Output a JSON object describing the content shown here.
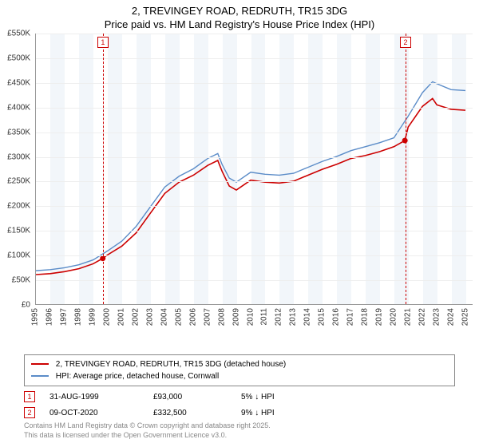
{
  "title_line1": "2, TREVINGEY ROAD, REDRUTH, TR15 3DG",
  "title_line2": "Price paid vs. HM Land Registry's House Price Index (HPI)",
  "chart": {
    "type": "line",
    "background_color": "#ffffff",
    "band_color": "#f2f6fa",
    "grid_color": "#eeeeee",
    "axis_color": "#999999",
    "x_years": [
      1995,
      1996,
      1997,
      1998,
      1999,
      2000,
      2001,
      2002,
      2003,
      2004,
      2005,
      2006,
      2007,
      2008,
      2009,
      2010,
      2011,
      2012,
      2013,
      2014,
      2015,
      2016,
      2017,
      2018,
      2019,
      2020,
      2021,
      2022,
      2023,
      2024,
      2025
    ],
    "y_ticks": [
      0,
      50,
      100,
      150,
      200,
      250,
      300,
      350,
      400,
      450,
      500,
      550
    ],
    "y_tick_labels": [
      "£0",
      "£50K",
      "£100K",
      "£150K",
      "£200K",
      "£250K",
      "£300K",
      "£350K",
      "£400K",
      "£450K",
      "£500K",
      "£550K"
    ],
    "ylim": [
      0,
      550
    ],
    "xlim": [
      1995,
      2025.5
    ],
    "series": [
      {
        "name": "price_paid",
        "label": "2, TREVINGEY ROAD, REDRUTH, TR15 3DG (detached house)",
        "color": "#cc0000",
        "width": 1.6,
        "points": [
          [
            1995,
            60
          ],
          [
            1996,
            62
          ],
          [
            1997,
            66
          ],
          [
            1998,
            72
          ],
          [
            1999,
            82
          ],
          [
            1999.67,
            93
          ],
          [
            2000,
            100
          ],
          [
            2001,
            118
          ],
          [
            2002,
            145
          ],
          [
            2003,
            185
          ],
          [
            2004,
            225
          ],
          [
            2005,
            248
          ],
          [
            2006,
            262
          ],
          [
            2007,
            282
          ],
          [
            2007.7,
            292
          ],
          [
            2008,
            270
          ],
          [
            2008.5,
            240
          ],
          [
            2009,
            232
          ],
          [
            2010,
            252
          ],
          [
            2011,
            248
          ],
          [
            2012,
            246
          ],
          [
            2013,
            250
          ],
          [
            2014,
            262
          ],
          [
            2015,
            274
          ],
          [
            2016,
            284
          ],
          [
            2017,
            296
          ],
          [
            2018,
            302
          ],
          [
            2019,
            310
          ],
          [
            2020,
            320
          ],
          [
            2020.77,
            332.5
          ],
          [
            2021,
            360
          ],
          [
            2022,
            402
          ],
          [
            2022.7,
            418
          ],
          [
            2023,
            405
          ],
          [
            2024,
            396
          ],
          [
            2025,
            394
          ]
        ]
      },
      {
        "name": "hpi",
        "label": "HPI: Average price, detached house, Cornwall",
        "color": "#5b8cc8",
        "width": 1.4,
        "points": [
          [
            1995,
            68
          ],
          [
            1996,
            70
          ],
          [
            1997,
            74
          ],
          [
            1998,
            80
          ],
          [
            1999,
            90
          ],
          [
            2000,
            108
          ],
          [
            2001,
            128
          ],
          [
            2002,
            158
          ],
          [
            2003,
            198
          ],
          [
            2004,
            238
          ],
          [
            2005,
            260
          ],
          [
            2006,
            275
          ],
          [
            2007,
            296
          ],
          [
            2007.7,
            306
          ],
          [
            2008,
            284
          ],
          [
            2008.5,
            256
          ],
          [
            2009,
            248
          ],
          [
            2010,
            268
          ],
          [
            2011,
            264
          ],
          [
            2012,
            262
          ],
          [
            2013,
            266
          ],
          [
            2014,
            278
          ],
          [
            2015,
            290
          ],
          [
            2016,
            300
          ],
          [
            2017,
            312
          ],
          [
            2018,
            320
          ],
          [
            2019,
            328
          ],
          [
            2020,
            338
          ],
          [
            2021,
            382
          ],
          [
            2022,
            430
          ],
          [
            2022.7,
            452
          ],
          [
            2023,
            448
          ],
          [
            2024,
            436
          ],
          [
            2025,
            434
          ]
        ]
      }
    ],
    "sale_markers": [
      {
        "num": "1",
        "year": 1999.67,
        "value": 93
      },
      {
        "num": "2",
        "year": 2020.77,
        "value": 332.5
      }
    ]
  },
  "legend": {
    "series1_label": "2, TREVINGEY ROAD, REDRUTH, TR15 3DG (detached house)",
    "series2_label": "HPI: Average price, detached house, Cornwall"
  },
  "sales": [
    {
      "num": "1",
      "date": "31-AUG-1999",
      "price": "£93,000",
      "delta": "5% ↓ HPI"
    },
    {
      "num": "2",
      "date": "09-OCT-2020",
      "price": "£332,500",
      "delta": "9% ↓ HPI"
    }
  ],
  "footer_line1": "Contains HM Land Registry data © Crown copyright and database right 2025.",
  "footer_line2": "This data is licensed under the Open Government Licence v3.0."
}
